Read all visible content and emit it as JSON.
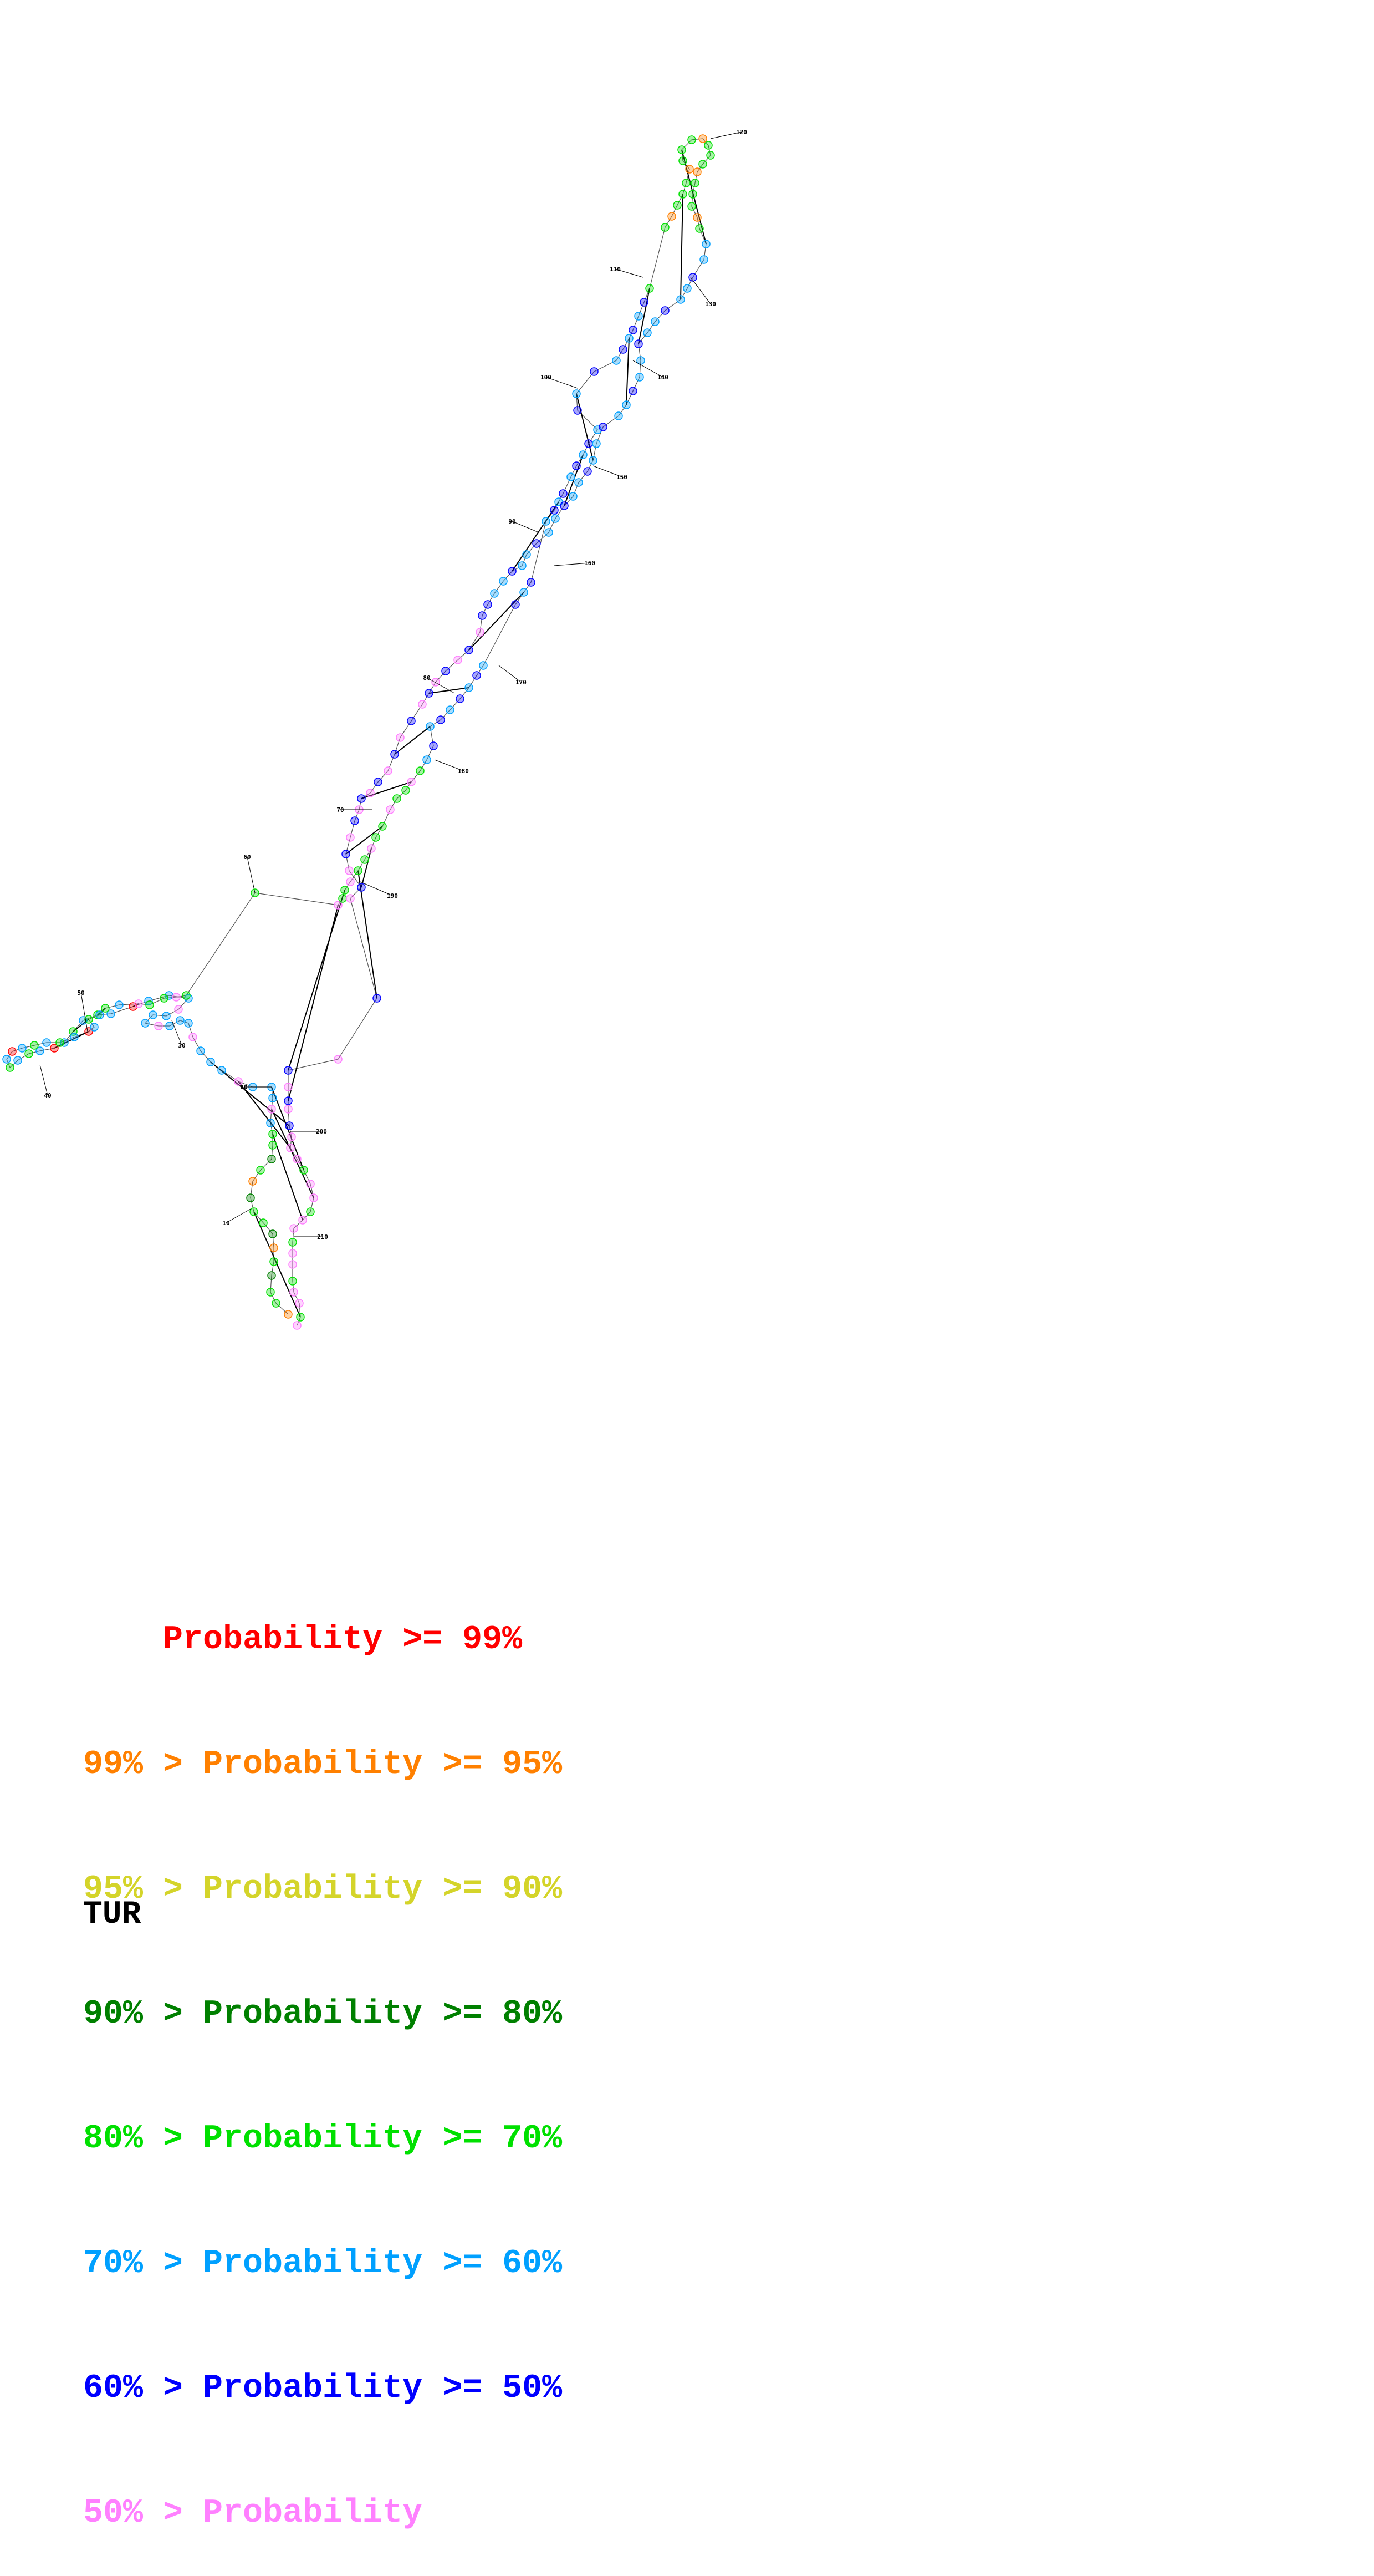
{
  "diagram": {
    "type": "rna-secondary-structure",
    "position_labels": [
      "10",
      "20",
      "30",
      "40",
      "50",
      "60",
      "70",
      "80",
      "90",
      "100",
      "110",
      "120",
      "130",
      "140",
      "150",
      "160",
      "170",
      "180",
      "190",
      "200",
      "210"
    ]
  },
  "colors": {
    "red": "#ff0000",
    "orange": "#ff8000",
    "yellow": "#d4d42a",
    "darkgreen": "#008000",
    "green": "#00e000",
    "cyan": "#00a0ff",
    "blue": "#0000ff",
    "pink": "#ff80ff"
  },
  "legend": [
    {
      "prefix": "    ",
      "text": "Probability >= 99%",
      "color": "#ff0000"
    },
    {
      "prefix": "99% > ",
      "text": "Probability >= 95%",
      "color": "#ff8000"
    },
    {
      "prefix": "95% > ",
      "text": "Probability >= 90%",
      "color": "#d4d42a"
    },
    {
      "prefix": "90% > ",
      "text": "Probability >= 80%",
      "color": "#008000"
    },
    {
      "prefix": "80% > ",
      "text": "Probability >= 70%",
      "color": "#00e000"
    },
    {
      "prefix": "70% > ",
      "text": "Probability >= 60%",
      "color": "#00a0ff"
    },
    {
      "prefix": "60% > ",
      "text": "Probability >= 50%",
      "color": "#0000ff"
    },
    {
      "prefix": "50% > ",
      "text": "Probability",
      "color": "#ff80ff"
    }
  ],
  "name": "TUR"
}
